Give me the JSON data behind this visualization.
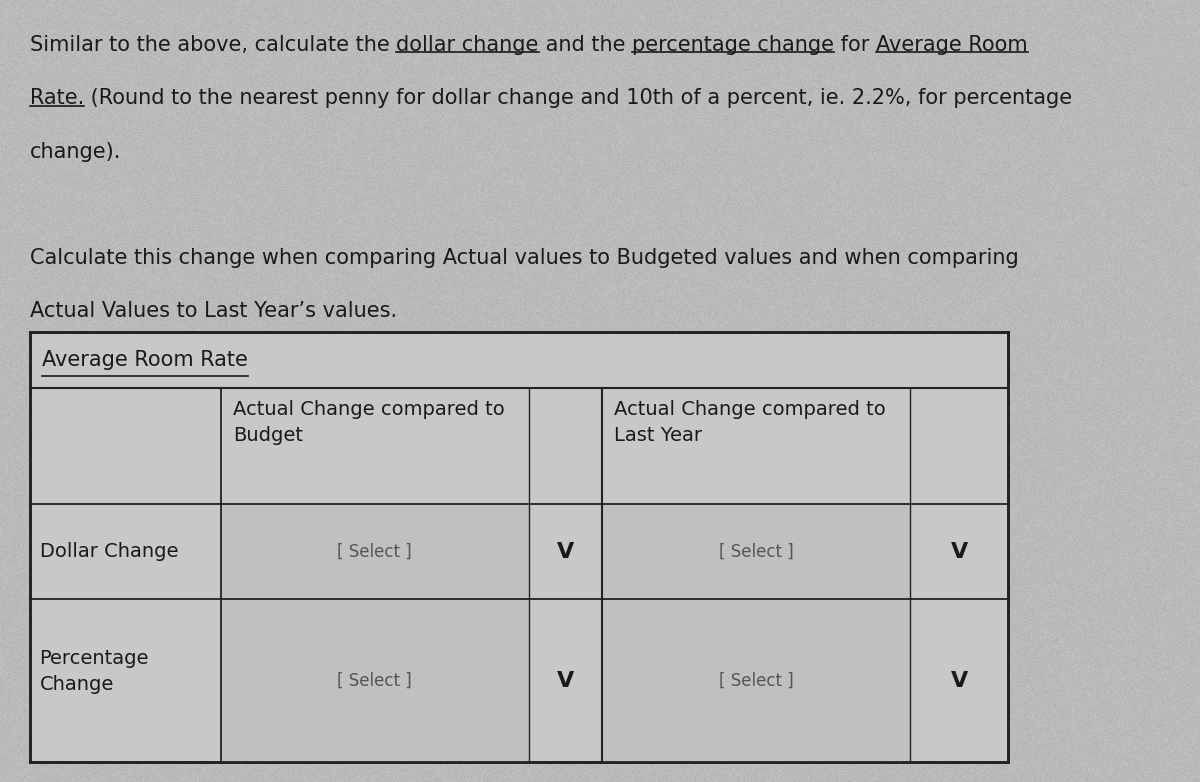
{
  "background_color": "#bebebe",
  "table_bg": "#c8c8c8",
  "cell_bg": "#c0c0c0",
  "select_bg": "#b0b0b0",
  "border_color": "#222222",
  "text_color": "#1a1a1a",
  "font_size_body": 15,
  "font_size_table": 14,
  "para_lines": [
    [
      "Similar to the above, calculate the ",
      false,
      "dollar change",
      true,
      " and the ",
      false,
      "percentage change",
      true,
      " for ",
      false,
      "Average Room",
      true
    ],
    [
      "Rate.",
      true,
      " (Round to the nearest penny for dollar change and 10th of a percent, ie. 2.2%, for percentage",
      false
    ],
    [
      "change).",
      false
    ],
    null,
    [
      "Calculate this change when comparing Actual values to Budgeted values and when comparing",
      false
    ],
    [
      "Actual Values to Last Year’s values.",
      false
    ]
  ],
  "table_title": "Average Room Rate",
  "header_col2": "Actual Change compared to\nBudget",
  "header_col3": "Actual Change compared to\nLast Year",
  "row1_label": "Dollar Change",
  "row2_label": "Percentage\nChange",
  "select_text": "[ Select ]",
  "chevron_char": "V"
}
